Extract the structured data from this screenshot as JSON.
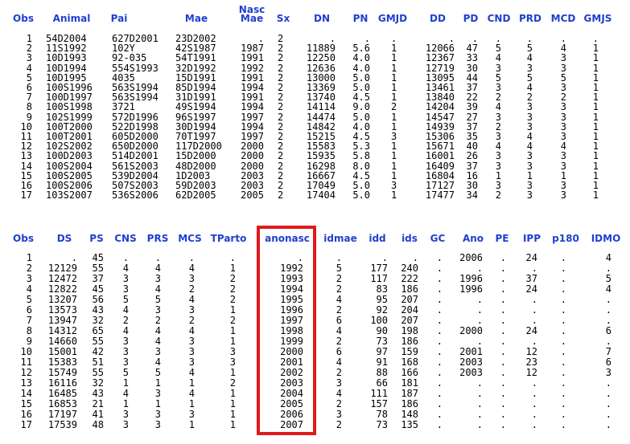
{
  "colors": {
    "header_text": "#1f3fd0",
    "cell_text": "#000000",
    "highlight_border": "#e0191d",
    "background": "#ffffff"
  },
  "table1": {
    "headers": [
      "Obs",
      "Animal",
      "Pai",
      "Mae",
      "Nasc\nMae",
      "Sx",
      "DN",
      "PN",
      "GMJD",
      "DD",
      "PD",
      "CND",
      "PRD",
      "MCD",
      "GMJS"
    ],
    "rows": [
      [
        "1",
        "54D2004",
        "627D2001",
        "23D2002",
        ".",
        "2",
        ".",
        ".",
        ".",
        ".",
        ".",
        ".",
        ".",
        ".",
        "."
      ],
      [
        "2",
        "11S1992",
        "102Y",
        "42S1987",
        "1987",
        "2",
        "11889",
        "5.6",
        "1",
        "12066",
        "47",
        "5",
        "5",
        "4",
        "1"
      ],
      [
        "3",
        "10D1993",
        "92-035",
        "54T1991",
        "1991",
        "2",
        "12250",
        "4.0",
        "1",
        "12367",
        "33",
        "4",
        "4",
        "3",
        "1"
      ],
      [
        "4",
        "10D1994",
        "554S1993",
        "32D1992",
        "1992",
        "2",
        "12636",
        "4.0",
        "1",
        "12719",
        "30",
        "3",
        "3",
        "3",
        "1"
      ],
      [
        "5",
        "10D1995",
        "4035",
        "15D1991",
        "1991",
        "2",
        "13000",
        "5.0",
        "1",
        "13095",
        "44",
        "5",
        "5",
        "5",
        "1"
      ],
      [
        "6",
        "100S1996",
        "563S1994",
        "85D1994",
        "1994",
        "2",
        "13369",
        "5.0",
        "1",
        "13461",
        "37",
        "3",
        "4",
        "3",
        "1"
      ],
      [
        "7",
        "100D1997",
        "563S1994",
        "31D1991",
        "1991",
        "2",
        "13740",
        "4.5",
        "1",
        "13840",
        "22",
        "2",
        "2",
        "2",
        "1"
      ],
      [
        "8",
        "100S1998",
        "3721",
        "49S1994",
        "1994",
        "2",
        "14114",
        "9.0",
        "2",
        "14204",
        "39",
        "4",
        "3",
        "3",
        "1"
      ],
      [
        "9",
        "102S1999",
        "572D1996",
        "96S1997",
        "1997",
        "2",
        "14474",
        "5.0",
        "1",
        "14547",
        "27",
        "3",
        "3",
        "3",
        "1"
      ],
      [
        "10",
        "100T2000",
        "522D1998",
        "30D1994",
        "1994",
        "2",
        "14842",
        "4.0",
        "1",
        "14939",
        "37",
        "2",
        "3",
        "3",
        "1"
      ],
      [
        "11",
        "100T2001",
        "605D2000",
        "70T1997",
        "1997",
        "2",
        "15215",
        "4.5",
        "3",
        "15306",
        "35",
        "3",
        "4",
        "3",
        "1"
      ],
      [
        "12",
        "102S2002",
        "650D2000",
        "117D2000",
        "2000",
        "2",
        "15583",
        "5.3",
        "1",
        "15671",
        "40",
        "4",
        "4",
        "4",
        "1"
      ],
      [
        "13",
        "100D2003",
        "514D2001",
        "15D2000",
        "2000",
        "2",
        "15935",
        "5.8",
        "1",
        "16001",
        "26",
        "3",
        "3",
        "3",
        "1"
      ],
      [
        "14",
        "100S2004",
        "561S2003",
        "48D2000",
        "2000",
        "2",
        "16298",
        "8.0",
        "1",
        "16409",
        "37",
        "3",
        "3",
        "3",
        "1"
      ],
      [
        "15",
        "100S2005",
        "539D2004",
        "1D2003",
        "2003",
        "2",
        "16667",
        "4.5",
        "1",
        "16804",
        "16",
        "1",
        "1",
        "1",
        "1"
      ],
      [
        "16",
        "100S2006",
        "507S2003",
        "59D2003",
        "2003",
        "2",
        "17049",
        "5.0",
        "3",
        "17127",
        "30",
        "3",
        "3",
        "3",
        "1"
      ],
      [
        "17",
        "103S2007",
        "536S2006",
        "62D2005",
        "2005",
        "2",
        "17404",
        "5.0",
        "1",
        "17477",
        "34",
        "2",
        "3",
        "3",
        "1"
      ]
    ]
  },
  "table2": {
    "headers": [
      "Obs",
      "DS",
      "PS",
      "CNS",
      "PRS",
      "MCS",
      "TParto",
      "anonasc",
      "idmae",
      "idd",
      "ids",
      "GC",
      "Ano",
      "PE",
      "IPP",
      "p180",
      "IDMO"
    ],
    "rows": [
      [
        "1",
        ".",
        "45",
        ".",
        ".",
        ".",
        ".",
        ".",
        ".",
        ".",
        ".",
        ".",
        "2006",
        ".",
        "24",
        ".",
        "4"
      ],
      [
        "2",
        "12129",
        "55",
        "4",
        "4",
        "4",
        "1",
        "1992",
        "5",
        "177",
        "240",
        ".",
        ".",
        ".",
        ".",
        ".",
        "."
      ],
      [
        "3",
        "12472",
        "37",
        "3",
        "3",
        "3",
        "2",
        "1993",
        "2",
        "117",
        "222",
        ".",
        "1996",
        ".",
        "37",
        ".",
        "5"
      ],
      [
        "4",
        "12822",
        "45",
        "3",
        "4",
        "2",
        "2",
        "1994",
        "2",
        "83",
        "186",
        ".",
        "1996",
        ".",
        "24",
        ".",
        "4"
      ],
      [
        "5",
        "13207",
        "56",
        "5",
        "5",
        "4",
        "2",
        "1995",
        "4",
        "95",
        "207",
        ".",
        ".",
        ".",
        ".",
        ".",
        "."
      ],
      [
        "6",
        "13573",
        "43",
        "4",
        "3",
        "3",
        "1",
        "1996",
        "2",
        "92",
        "204",
        ".",
        ".",
        ".",
        ".",
        ".",
        "."
      ],
      [
        "7",
        "13947",
        "32",
        "2",
        "2",
        "2",
        "2",
        "1997",
        "6",
        "100",
        "207",
        ".",
        ".",
        ".",
        ".",
        ".",
        "."
      ],
      [
        "8",
        "14312",
        "65",
        "4",
        "4",
        "4",
        "1",
        "1998",
        "4",
        "90",
        "198",
        ".",
        "2000",
        ".",
        "24",
        ".",
        "6"
      ],
      [
        "9",
        "14660",
        "55",
        "3",
        "4",
        "3",
        "1",
        "1999",
        "2",
        "73",
        "186",
        ".",
        ".",
        ".",
        ".",
        ".",
        "."
      ],
      [
        "10",
        "15001",
        "42",
        "3",
        "3",
        "3",
        "3",
        "2000",
        "6",
        "97",
        "159",
        ".",
        "2001",
        ".",
        "12",
        ".",
        "7"
      ],
      [
        "11",
        "15383",
        "51",
        "3",
        "4",
        "3",
        "3",
        "2001",
        "4",
        "91",
        "168",
        ".",
        "2003",
        ".",
        "23",
        ".",
        "6"
      ],
      [
        "12",
        "15749",
        "55",
        "5",
        "5",
        "4",
        "1",
        "2002",
        "2",
        "88",
        "166",
        ".",
        "2003",
        ".",
        "12",
        ".",
        "3"
      ],
      [
        "13",
        "16116",
        "32",
        "1",
        "1",
        "1",
        "2",
        "2003",
        "3",
        "66",
        "181",
        ".",
        ".",
        ".",
        ".",
        ".",
        "."
      ],
      [
        "14",
        "16485",
        "43",
        "4",
        "3",
        "4",
        "1",
        "2004",
        "4",
        "111",
        "187",
        ".",
        ".",
        ".",
        ".",
        ".",
        "."
      ],
      [
        "15",
        "16853",
        "21",
        "1",
        "1",
        "1",
        "1",
        "2005",
        "2",
        "157",
        "186",
        ".",
        ".",
        ".",
        ".",
        ".",
        "."
      ],
      [
        "16",
        "17197",
        "41",
        "3",
        "3",
        "3",
        "1",
        "2006",
        "3",
        "78",
        "148",
        ".",
        ".",
        ".",
        ".",
        ".",
        "."
      ],
      [
        "17",
        "17539",
        "48",
        "3",
        "3",
        "1",
        "1",
        "2007",
        "2",
        "73",
        "135",
        ".",
        ".",
        ".",
        ".",
        ".",
        "."
      ]
    ]
  }
}
